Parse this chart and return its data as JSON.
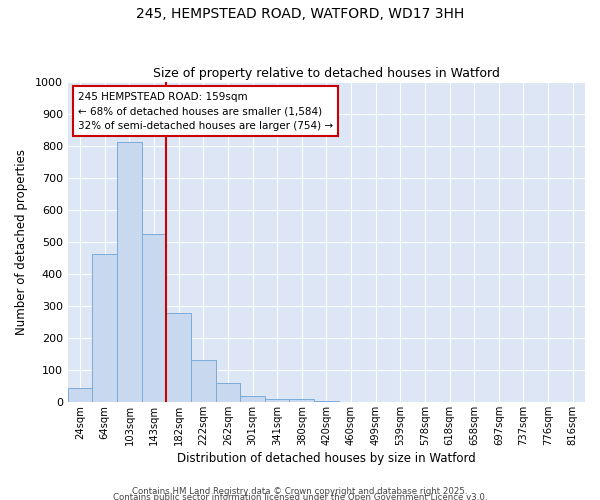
{
  "title": "245, HEMPSTEAD ROAD, WATFORD, WD17 3HH",
  "subtitle": "Size of property relative to detached houses in Watford",
  "xlabel": "Distribution of detached houses by size in Watford",
  "ylabel": "Number of detached properties",
  "categories": [
    "24sqm",
    "64sqm",
    "103sqm",
    "143sqm",
    "182sqm",
    "222sqm",
    "262sqm",
    "301sqm",
    "341sqm",
    "380sqm",
    "420sqm",
    "460sqm",
    "499sqm",
    "539sqm",
    "578sqm",
    "618sqm",
    "658sqm",
    "697sqm",
    "737sqm",
    "776sqm",
    "816sqm"
  ],
  "values": [
    45,
    463,
    812,
    526,
    279,
    130,
    60,
    20,
    10,
    10,
    2,
    0,
    0,
    0,
    0,
    0,
    0,
    0,
    0,
    0,
    0
  ],
  "bar_color": "#c8d8ee",
  "bar_edge_color": "#7aabda",
  "marker_index": 3.5,
  "annotation_line1": "245 HEMPSTEAD ROAD: 159sqm",
  "annotation_line2": "← 68% of detached houses are smaller (1,584)",
  "annotation_line3": "32% of semi-detached houses are larger (754) →",
  "annotation_box_color": "#ffffff",
  "annotation_box_edge": "#cc0000",
  "marker_line_color": "#cc0000",
  "ylim": [
    0,
    1000
  ],
  "yticks": [
    0,
    100,
    200,
    300,
    400,
    500,
    600,
    700,
    800,
    900,
    1000
  ],
  "plot_bg_color": "#dce6f5",
  "fig_bg_color": "#ffffff",
  "grid_color": "#ffffff",
  "footer1": "Contains HM Land Registry data © Crown copyright and database right 2025.",
  "footer2": "Contains public sector information licensed under the Open Government Licence v3.0."
}
